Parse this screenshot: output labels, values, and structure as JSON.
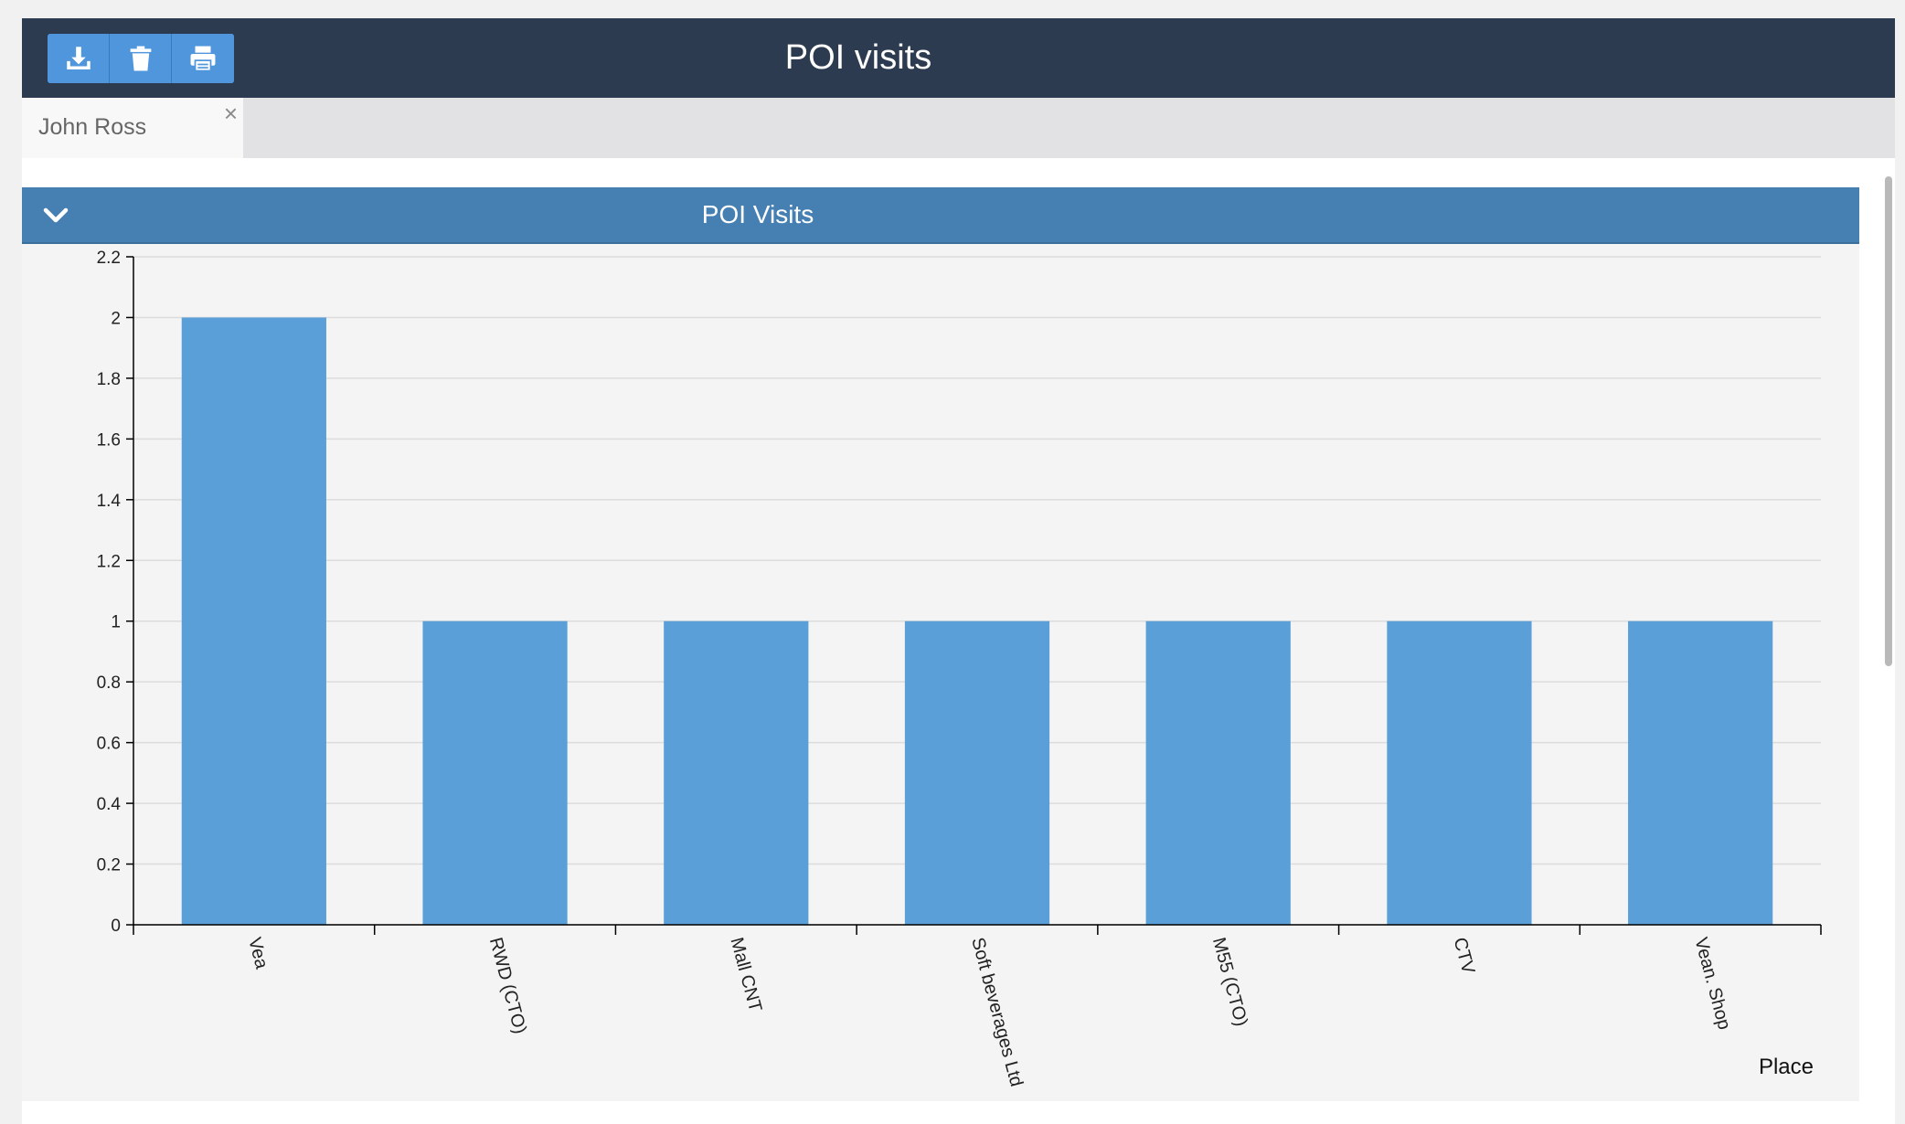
{
  "window": {
    "title": "POI visits"
  },
  "toolbar": {
    "buttons": [
      {
        "icon": "download-icon"
      },
      {
        "icon": "trash-icon"
      },
      {
        "icon": "print-icon"
      }
    ]
  },
  "tabs": [
    {
      "label": "John Ross",
      "close": "×"
    }
  ],
  "panel": {
    "title": "POI Visits"
  },
  "colors": {
    "topbar": "#2d3b50",
    "panel_header": "#4680b2",
    "bar": "#5b9fd9",
    "toolbar_button": "#4f96dc"
  },
  "chart_data": {
    "type": "bar",
    "categories": [
      "Vea",
      "RWD (CTO)",
      "Mall CNT",
      "Soft beverages Ltd",
      "M55 (CTO)",
      "CTV",
      "Vean. Shop"
    ],
    "values": [
      2,
      1,
      1,
      1,
      1,
      1,
      1
    ],
    "xlabel": "Place",
    "ylabel": "",
    "ylim": [
      0,
      2.2
    ],
    "yticks": [
      "0",
      "0.2",
      "0.4",
      "0.6",
      "0.8",
      "1",
      "1.2",
      "1.4",
      "1.6",
      "1.8",
      "2",
      "2.2"
    ],
    "grid": true
  }
}
